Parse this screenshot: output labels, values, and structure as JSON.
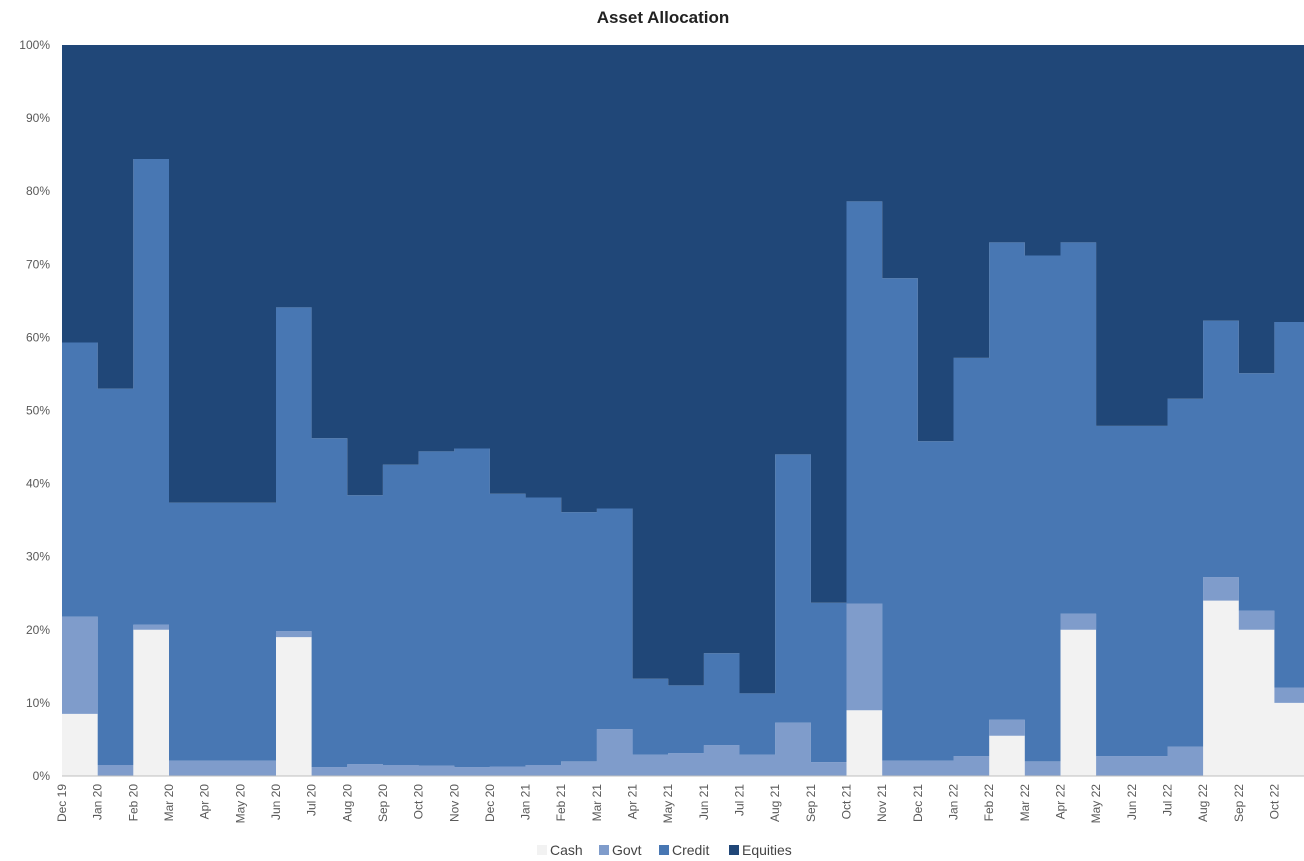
{
  "chart_data": {
    "type": "area",
    "stacked": true,
    "title": "Asset Allocation",
    "xlabel": "",
    "ylabel": "",
    "ylim": [
      0,
      100
    ],
    "y_ticks": [
      "0%",
      "10%",
      "20%",
      "30%",
      "40%",
      "50%",
      "60%",
      "70%",
      "80%",
      "90%",
      "100%"
    ],
    "categories": [
      "Dec 19",
      "Jan 20",
      "Feb 20",
      "Mar 20",
      "Apr 20",
      "May 20",
      "Jun 20",
      "Jul 20",
      "Aug 20",
      "Sep 20",
      "Oct 20",
      "Nov 20",
      "Dec 20",
      "Jan 21",
      "Feb 21",
      "Mar 21",
      "Apr 21",
      "May 21",
      "Jun 21",
      "Jul 21",
      "Aug 21",
      "Sep 21",
      "Oct 21",
      "Nov 21",
      "Dec 21",
      "Jan 22",
      "Feb 22",
      "Mar 22",
      "Apr 22",
      "May 22",
      "Jun 22",
      "Jul 22",
      "Aug 22",
      "Sep 22",
      "Oct 22"
    ],
    "legend_position": "bottom",
    "grid": false,
    "series": [
      {
        "name": "Cash",
        "color": "#f2f2f2",
        "values": [
          8.5,
          0,
          20,
          0,
          0,
          0,
          19,
          0,
          0,
          0,
          0,
          0,
          0,
          0,
          0,
          0,
          0,
          0,
          0,
          0,
          0,
          0,
          9,
          0,
          0,
          0,
          5.5,
          0,
          20,
          0,
          0,
          0,
          24,
          20,
          10
        ]
      },
      {
        "name": "Govt",
        "color": "#7f9ccb",
        "values": [
          13.3,
          1.5,
          0.7,
          2.1,
          2.1,
          2.1,
          0.8,
          1.2,
          1.6,
          1.5,
          1.4,
          1.2,
          1.3,
          1.5,
          2,
          6.4,
          2.9,
          3.1,
          4.2,
          2.9,
          7.3,
          1.9,
          14.6,
          2.1,
          2.1,
          2.7,
          2.2,
          2,
          2.2,
          2.7,
          2.7,
          4,
          3.2,
          2.6,
          2.1
        ]
      },
      {
        "name": "Credit",
        "color": "#4877b3",
        "values": [
          37.5,
          51.5,
          63.7,
          35.3,
          35.3,
          35.3,
          44.3,
          45,
          36.8,
          41.1,
          43,
          43.6,
          37.3,
          36.6,
          34.1,
          30.2,
          10.4,
          9.3,
          12.6,
          8.4,
          36.7,
          21.8,
          55,
          66,
          43.7,
          54.5,
          65.3,
          69.2,
          50.8,
          45.2,
          45.2,
          47.6,
          35.1,
          32.5,
          50
        ]
      },
      {
        "name": "Equities",
        "color": "#204778",
        "values": [
          40.7,
          47,
          15.6,
          62.6,
          62.6,
          62.6,
          35.9,
          53.8,
          61.6,
          57.4,
          55.6,
          55.2,
          61.4,
          61.9,
          63.9,
          63.4,
          86.7,
          87.6,
          83.2,
          88.7,
          56,
          76.3,
          21.4,
          31.9,
          54.2,
          42.8,
          27,
          28.8,
          27,
          52.1,
          52.1,
          48.4,
          37.7,
          44.9,
          37.9
        ]
      }
    ]
  }
}
